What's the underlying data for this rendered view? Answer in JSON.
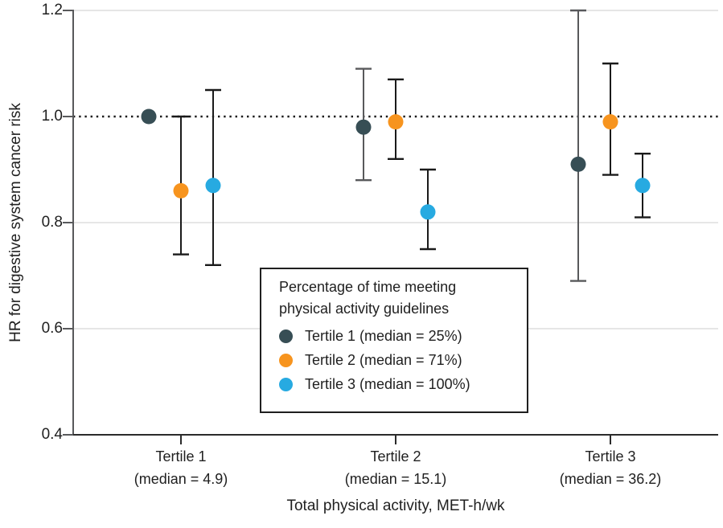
{
  "chart_data": {
    "type": "scatter",
    "subtype": "point-estimates-with-95ci-error-bars",
    "title": "",
    "xlabel": "Total physical activity, MET-h/wk",
    "ylabel": "HR for digestive system cancer risk",
    "ylim": [
      0.4,
      1.2
    ],
    "yticks": [
      0.4,
      0.6,
      0.8,
      1.0,
      1.2
    ],
    "ytick_labels": [
      "0.4",
      "0.6",
      "0.8",
      "1.0",
      "1.2"
    ],
    "gridlines_at": [
      0.6,
      0.8,
      1.2
    ],
    "grid_on": true,
    "reference_line_y": 1.0,
    "categories": [
      {
        "line1": "Tertile 1",
        "line2": "(median = 4.9)"
      },
      {
        "line1": "Tertile 2",
        "line2": "(median = 15.1)"
      },
      {
        "line1": "Tertile 3",
        "line2": "(median = 36.2)"
      }
    ],
    "series": [
      {
        "name": "Tertile 1 (median = 25%)",
        "color": "#374E55",
        "error_bar_color": "#58595B",
        "points": [
          {
            "hr": 1.0,
            "lo": null,
            "hi": null
          },
          {
            "hr": 0.98,
            "lo": 0.88,
            "hi": 1.09
          },
          {
            "hr": 0.91,
            "lo": 0.69,
            "hi": 1.2
          }
        ]
      },
      {
        "name": "Tertile 2 (median = 71%)",
        "color": "#F7941E",
        "error_bar_color": "#1A1A1A",
        "points": [
          {
            "hr": 0.86,
            "lo": 0.74,
            "hi": 1.0
          },
          {
            "hr": 0.99,
            "lo": 0.92,
            "hi": 1.07
          },
          {
            "hr": 0.99,
            "lo": 0.89,
            "hi": 1.1
          }
        ]
      },
      {
        "name": "Tertile 3 (median = 100%)",
        "color": "#27AAE1",
        "error_bar_color": "#1A1A1A",
        "points": [
          {
            "hr": 0.87,
            "lo": 0.72,
            "hi": 1.05
          },
          {
            "hr": 0.82,
            "lo": 0.75,
            "hi": 0.9
          },
          {
            "hr": 0.87,
            "lo": 0.81,
            "hi": 0.93
          }
        ]
      }
    ],
    "legend": {
      "title_lines": [
        "Percentage of time meeting",
        "physical activity guidelines"
      ],
      "position": "inside-bottom-center"
    },
    "style": {
      "grid_color": "#E6E6E6",
      "y_axis_color": "#58595B",
      "x_axis_color": "#2B2B2B",
      "reference_line_color": "#1A1A1A",
      "text_color": "#1F1F1F",
      "background": "#FFFFFF"
    }
  }
}
